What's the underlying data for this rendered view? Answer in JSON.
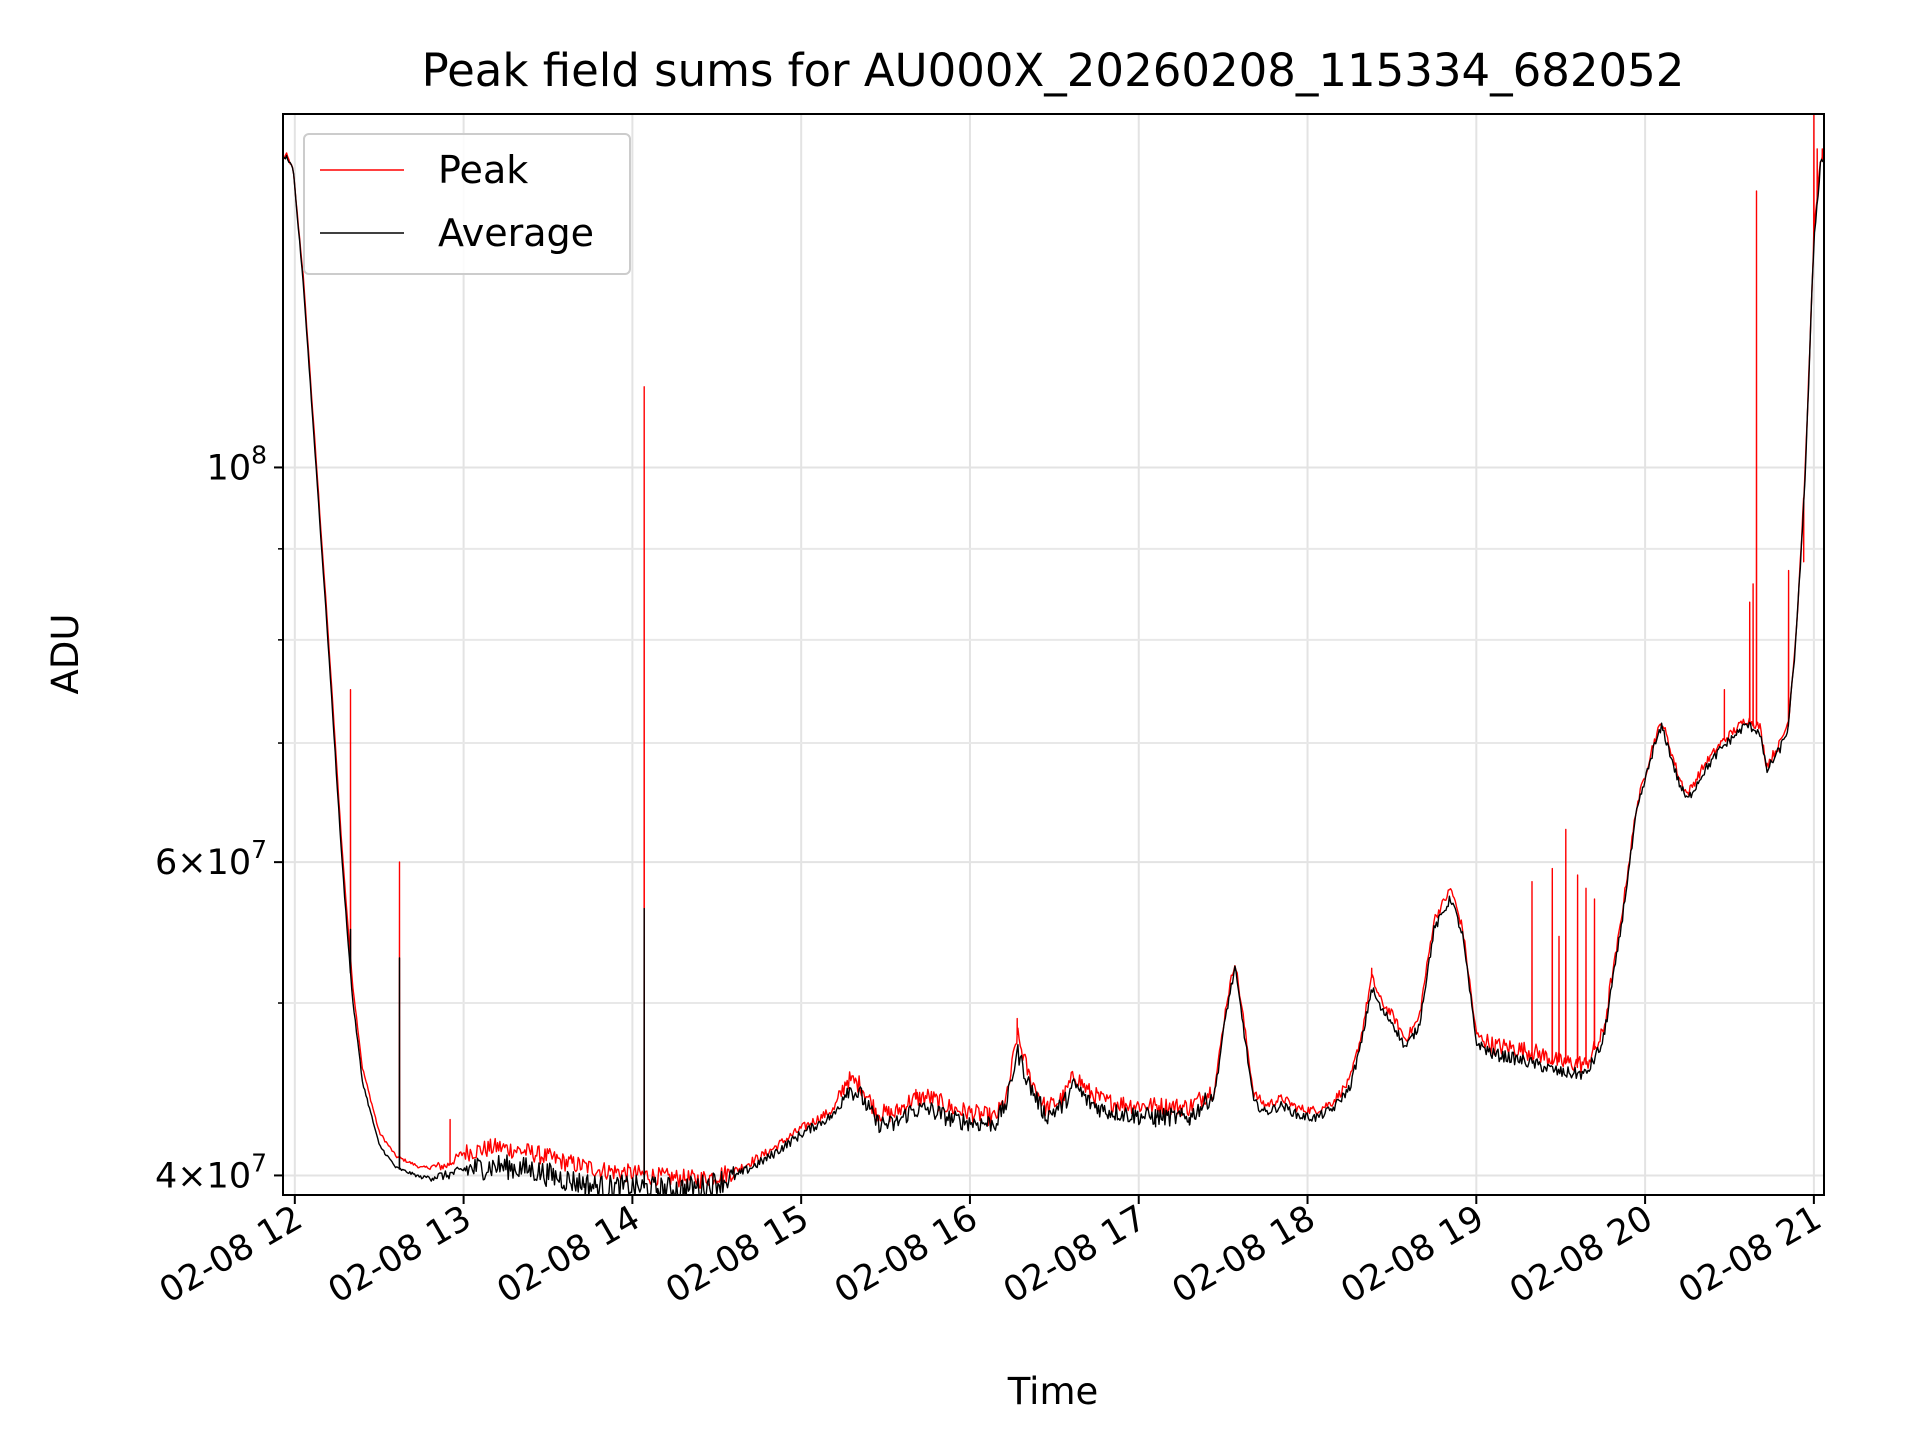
{
  "chart_data": {
    "type": "line",
    "title": "Peak field sums for AU000X_20260208_115334_682052",
    "xlabel": "Time",
    "ylabel": "ADU",
    "yscale": "log",
    "ylim": [
      39000000,
      158000000
    ],
    "xlim_hours": [
      11.93,
      21.06
    ],
    "grid": true,
    "legend_position": "top-left",
    "x_ticks": [
      {
        "value": 12,
        "label": "02-08 12"
      },
      {
        "value": 13,
        "label": "02-08 13"
      },
      {
        "value": 14,
        "label": "02-08 14"
      },
      {
        "value": 15,
        "label": "02-08 15"
      },
      {
        "value": 16,
        "label": "02-08 16"
      },
      {
        "value": 17,
        "label": "02-08 17"
      },
      {
        "value": 18,
        "label": "02-08 18"
      },
      {
        "value": 19,
        "label": "02-08 19"
      },
      {
        "value": 20,
        "label": "02-08 20"
      },
      {
        "value": 21,
        "label": "02-08 21"
      }
    ],
    "y_ticks_major": [
      {
        "value": 40000000,
        "base": "4",
        "times": "×",
        "exp_base": "10",
        "exp": "7"
      },
      {
        "value": 60000000,
        "base": "6",
        "times": "×",
        "exp_base": "10",
        "exp": "7"
      },
      {
        "value": 100000000,
        "base": "",
        "times": "",
        "exp_base": "10",
        "exp": "8"
      }
    ],
    "y_ticks_minor": [
      50000000,
      70000000,
      80000000,
      90000000
    ],
    "series": [
      {
        "name": "Peak",
        "color": "#ff0000",
        "baseline": [
          [
            11.93,
            149000000
          ],
          [
            11.95,
            150000000
          ],
          [
            11.99,
            147000000
          ],
          [
            12.05,
            128000000
          ],
          [
            12.12,
            103000000
          ],
          [
            12.2,
            80000000
          ],
          [
            12.28,
            61000000
          ],
          [
            12.34,
            51500000
          ],
          [
            12.4,
            46000000
          ],
          [
            12.5,
            42300000
          ],
          [
            12.6,
            41000000
          ],
          [
            12.75,
            40400000
          ],
          [
            12.9,
            40500000
          ],
          [
            13.0,
            41200000
          ],
          [
            13.2,
            41500000
          ],
          [
            13.4,
            41200000
          ],
          [
            13.6,
            40700000
          ],
          [
            13.8,
            40300000
          ],
          [
            14.0,
            40100000
          ],
          [
            14.2,
            39900000
          ],
          [
            14.4,
            39800000
          ],
          [
            14.6,
            40200000
          ],
          [
            14.8,
            41200000
          ],
          [
            15.0,
            42500000
          ],
          [
            15.2,
            43600000
          ],
          [
            15.27,
            45300000
          ],
          [
            15.35,
            45000000
          ],
          [
            15.45,
            43400000
          ],
          [
            15.55,
            43300000
          ],
          [
            15.65,
            44100000
          ],
          [
            15.75,
            44300000
          ],
          [
            15.9,
            43600000
          ],
          [
            16.05,
            43300000
          ],
          [
            16.15,
            43100000
          ],
          [
            16.22,
            44300000
          ],
          [
            16.28,
            48000000
          ],
          [
            16.35,
            45500000
          ],
          [
            16.45,
            43600000
          ],
          [
            16.55,
            44200000
          ],
          [
            16.62,
            45600000
          ],
          [
            16.7,
            44600000
          ],
          [
            16.8,
            44000000
          ],
          [
            17.0,
            43800000
          ],
          [
            17.3,
            43700000
          ],
          [
            17.45,
            44800000
          ],
          [
            17.52,
            50000000
          ],
          [
            17.57,
            52800000
          ],
          [
            17.62,
            49000000
          ],
          [
            17.68,
            44500000
          ],
          [
            17.75,
            43800000
          ],
          [
            17.85,
            44200000
          ],
          [
            17.95,
            43600000
          ],
          [
            18.05,
            43500000
          ],
          [
            18.15,
            44000000
          ],
          [
            18.25,
            45200000
          ],
          [
            18.32,
            48000000
          ],
          [
            18.38,
            51700000
          ],
          [
            18.44,
            50000000
          ],
          [
            18.5,
            49300000
          ],
          [
            18.58,
            47700000
          ],
          [
            18.66,
            49000000
          ],
          [
            18.75,
            55700000
          ],
          [
            18.85,
            58000000
          ],
          [
            18.92,
            55000000
          ],
          [
            19.0,
            48000000
          ],
          [
            19.1,
            47300000
          ],
          [
            19.2,
            47200000
          ],
          [
            19.35,
            46900000
          ],
          [
            19.5,
            46300000
          ],
          [
            19.65,
            46200000
          ],
          [
            19.75,
            48000000
          ],
          [
            19.85,
            55000000
          ],
          [
            19.95,
            64500000
          ],
          [
            20.05,
            70000000
          ],
          [
            20.1,
            72000000
          ],
          [
            20.2,
            67000000
          ],
          [
            20.25,
            65500000
          ],
          [
            20.35,
            68000000
          ],
          [
            20.45,
            70000000
          ],
          [
            20.6,
            72200000
          ],
          [
            20.68,
            71500000
          ],
          [
            20.72,
            68000000
          ],
          [
            20.8,
            70000000
          ],
          [
            20.85,
            72000000
          ],
          [
            20.9,
            82000000
          ],
          [
            20.95,
            100000000
          ],
          [
            21.0,
            135000000
          ],
          [
            21.04,
            149000000
          ],
          [
            21.06,
            150000000
          ]
        ],
        "spikes": [
          [
            12.33,
            75000000
          ],
          [
            12.62,
            60000000
          ],
          [
            12.92,
            43000000
          ],
          [
            14.07,
            111000000
          ],
          [
            15.68,
            44700000
          ],
          [
            16.28,
            49000000
          ],
          [
            18.38,
            52300000
          ],
          [
            19.33,
            58500000
          ],
          [
            19.45,
            59500000
          ],
          [
            19.49,
            54500000
          ],
          [
            19.53,
            62600000
          ],
          [
            19.6,
            59000000
          ],
          [
            19.65,
            58000000
          ],
          [
            19.7,
            57200000
          ],
          [
            20.47,
            75000000
          ],
          [
            20.62,
            84000000
          ],
          [
            20.64,
            86000000
          ],
          [
            20.66,
            143000000
          ],
          [
            20.85,
            87500000
          ],
          [
            20.94,
            88500000
          ],
          [
            21.0,
            158000000
          ],
          [
            21.02,
            151000000
          ],
          [
            21.05,
            151000000
          ]
        ]
      },
      {
        "name": "Average",
        "color": "#000000",
        "baseline": [
          [
            11.93,
            149000000
          ],
          [
            11.95,
            149500000
          ],
          [
            11.99,
            147000000
          ],
          [
            12.05,
            127000000
          ],
          [
            12.12,
            102000000
          ],
          [
            12.2,
            79000000
          ],
          [
            12.28,
            60000000
          ],
          [
            12.34,
            50500000
          ],
          [
            12.4,
            45200000
          ],
          [
            12.5,
            41600000
          ],
          [
            12.6,
            40400000
          ],
          [
            12.75,
            39900000
          ],
          [
            12.9,
            40000000
          ],
          [
            13.0,
            40300000
          ],
          [
            13.2,
            40500000
          ],
          [
            13.4,
            40300000
          ],
          [
            13.6,
            39800000
          ],
          [
            13.8,
            39400000
          ],
          [
            14.0,
            39400000
          ],
          [
            14.2,
            39300000
          ],
          [
            14.4,
            39400000
          ],
          [
            14.6,
            39900000
          ],
          [
            14.8,
            40900000
          ],
          [
            15.0,
            42200000
          ],
          [
            15.2,
            43300000
          ],
          [
            15.27,
            44800000
          ],
          [
            15.35,
            44400000
          ],
          [
            15.45,
            42800000
          ],
          [
            15.55,
            42700000
          ],
          [
            15.65,
            43500000
          ],
          [
            15.75,
            43600000
          ],
          [
            15.9,
            43000000
          ],
          [
            16.05,
            42800000
          ],
          [
            16.15,
            42800000
          ],
          [
            16.22,
            44000000
          ],
          [
            16.28,
            47000000
          ],
          [
            16.35,
            45000000
          ],
          [
            16.45,
            43200000
          ],
          [
            16.55,
            43800000
          ],
          [
            16.62,
            45000000
          ],
          [
            16.7,
            44000000
          ],
          [
            16.8,
            43500000
          ],
          [
            17.0,
            43200000
          ],
          [
            17.3,
            43100000
          ],
          [
            17.45,
            44500000
          ],
          [
            17.52,
            49500000
          ],
          [
            17.57,
            52300000
          ],
          [
            17.62,
            48500000
          ],
          [
            17.68,
            44000000
          ],
          [
            17.75,
            43400000
          ],
          [
            17.85,
            43800000
          ],
          [
            17.95,
            43200000
          ],
          [
            18.05,
            43100000
          ],
          [
            18.15,
            43600000
          ],
          [
            18.25,
            44800000
          ],
          [
            18.32,
            47500000
          ],
          [
            18.38,
            51000000
          ],
          [
            18.44,
            49500000
          ],
          [
            18.5,
            48800000
          ],
          [
            18.58,
            47200000
          ],
          [
            18.66,
            48500000
          ],
          [
            18.75,
            55000000
          ],
          [
            18.85,
            57300000
          ],
          [
            18.92,
            54500000
          ],
          [
            19.0,
            47500000
          ],
          [
            19.1,
            46800000
          ],
          [
            19.2,
            46600000
          ],
          [
            19.35,
            46200000
          ],
          [
            19.5,
            45700000
          ],
          [
            19.65,
            45600000
          ],
          [
            19.75,
            47500000
          ],
          [
            19.85,
            54500000
          ],
          [
            19.95,
            64000000
          ],
          [
            20.05,
            69500000
          ],
          [
            20.1,
            71500000
          ],
          [
            20.2,
            66500000
          ],
          [
            20.25,
            65000000
          ],
          [
            20.35,
            67500000
          ],
          [
            20.45,
            69500000
          ],
          [
            20.6,
            71700000
          ],
          [
            20.68,
            71000000
          ],
          [
            20.72,
            67500000
          ],
          [
            20.8,
            69500000
          ],
          [
            20.85,
            71500000
          ],
          [
            20.9,
            81500000
          ],
          [
            20.95,
            99500000
          ],
          [
            21.0,
            134000000
          ],
          [
            21.04,
            148500000
          ],
          [
            21.06,
            149000000
          ]
        ],
        "spikes": [
          [
            12.33,
            55000000
          ],
          [
            12.62,
            53000000
          ],
          [
            14.07,
            56500000
          ],
          [
            13.72,
            39000000
          ],
          [
            14.15,
            38800000
          ],
          [
            14.3,
            38900000
          ],
          [
            17.1,
            42600000
          ],
          [
            17.3,
            42700000
          ]
        ]
      }
    ]
  }
}
